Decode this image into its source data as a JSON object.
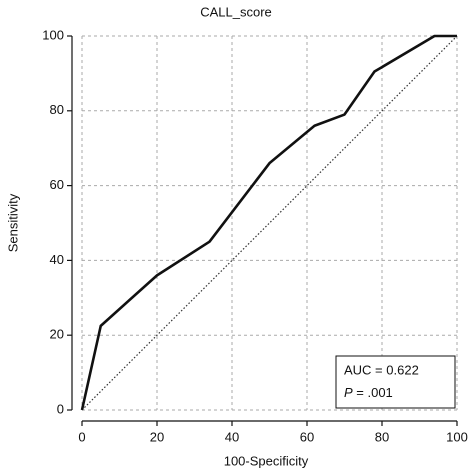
{
  "chart_data": {
    "type": "line",
    "title": "CALL_score",
    "x_label": "100-Specificity",
    "y_label": "Sensitivity",
    "x": [
      0,
      5,
      20,
      34,
      50,
      62,
      70,
      78,
      94,
      100
    ],
    "values": [
      0,
      22.5,
      36,
      45,
      66,
      76,
      79,
      90.5,
      100,
      100
    ],
    "color": "#111111",
    "xlim": [
      0,
      100
    ],
    "ylim": [
      0,
      100
    ],
    "xticks": [
      0,
      20,
      40,
      60,
      80,
      100
    ],
    "yticks": [
      0,
      20,
      40,
      60,
      80,
      100
    ],
    "grid": true,
    "annotation": {
      "auc": "AUC = 0.622",
      "p_label": "P",
      "p_value": " = .001"
    }
  }
}
